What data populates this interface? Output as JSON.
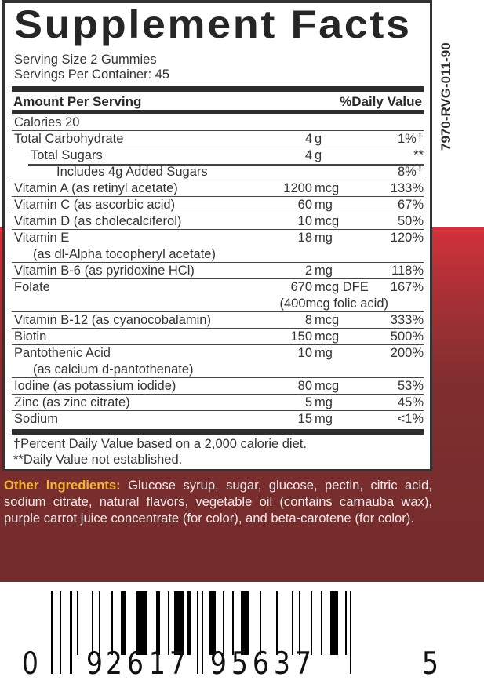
{
  "lot_code": "7970-RVG-011-90",
  "panel": {
    "title": "Supplement Facts",
    "serving_size": "Serving Size 2 Gummies",
    "servings_per_container": "Servings Per Container: 45",
    "amount_header": "Amount Per Serving",
    "dv_header": "%Daily Value",
    "rows": [
      {
        "name": "Calories  20",
        "amount_num": "",
        "amount_unit": "",
        "dv": ""
      },
      {
        "name": "Total Carbohydrate",
        "amount_num": "4",
        "amount_unit": "g",
        "dv": "1%†"
      },
      {
        "name": "Total Sugars",
        "amount_num": "4",
        "amount_unit": "g",
        "dv": "**"
      },
      {
        "name": "Includes 4g Added Sugars",
        "amount_num": "",
        "amount_unit": "",
        "dv": "8%†"
      },
      {
        "name": "Vitamin A (as retinyl acetate)",
        "amount_num": "1200",
        "amount_unit": "mcg",
        "dv": "133%"
      },
      {
        "name": "Vitamin C (as ascorbic acid)",
        "amount_num": "60",
        "amount_unit": "mg",
        "dv": "67%"
      },
      {
        "name": "Vitamin D (as cholecalciferol)",
        "amount_num": "10",
        "amount_unit": "mcg",
        "dv": "50%"
      },
      {
        "name": "Vitamin E",
        "sub": "(as dl-Alpha tocopheryl acetate)",
        "amount_num": "18",
        "amount_unit": "mg",
        "dv": "120%"
      },
      {
        "name": "Vitamin B-6 (as pyridoxine HCl)",
        "amount_num": "2",
        "amount_unit": "mg",
        "dv": "118%"
      },
      {
        "name": "Folate",
        "amount_num": "670",
        "amount_unit": "mcg DFE",
        "amount_sub": "(400mcg folic acid)",
        "dv": "167%"
      },
      {
        "name": "Vitamin B-12 (as cyanocobalamin)",
        "amount_num": "8",
        "amount_unit": "mcg",
        "dv": "333%"
      },
      {
        "name": "Biotin",
        "amount_num": "150",
        "amount_unit": "mcg",
        "dv": "500%"
      },
      {
        "name": "Pantothenic Acid",
        "sub": "(as calcium d-pantothenate)",
        "amount_num": "10",
        "amount_unit": "mg",
        "dv": "200%"
      },
      {
        "name": "Iodine (as potassium iodide)",
        "amount_num": "80",
        "amount_unit": "mcg",
        "dv": "53%"
      },
      {
        "name": "Zinc (as zinc citrate)",
        "amount_num": "5",
        "amount_unit": "mg",
        "dv": "45%"
      },
      {
        "name": "Sodium",
        "amount_num": "15",
        "amount_unit": "mg",
        "dv": "<1%"
      }
    ],
    "footnote_1": "†Percent Daily Value based on a 2,000 calorie diet.",
    "footnote_2": "**Daily Value not established."
  },
  "ingredients": {
    "label": "Other ingredients:",
    "text": " Glucose syrup, sugar, glucose, pectin, citric acid, sodium citrate, natural flavors, vegetable oil (contains carnauba wax), purple carrot juice concentrate (for color), and beta-carotene (for color)."
  },
  "barcode": {
    "digits": [
      "0",
      "9",
      "2",
      "6",
      "1",
      "7",
      "9",
      "5",
      "6",
      "3",
      "7",
      "5"
    ]
  },
  "colors": {
    "accent": "#f5b335",
    "background_red": "#d3313b",
    "background_maroon": "#732c2c"
  }
}
